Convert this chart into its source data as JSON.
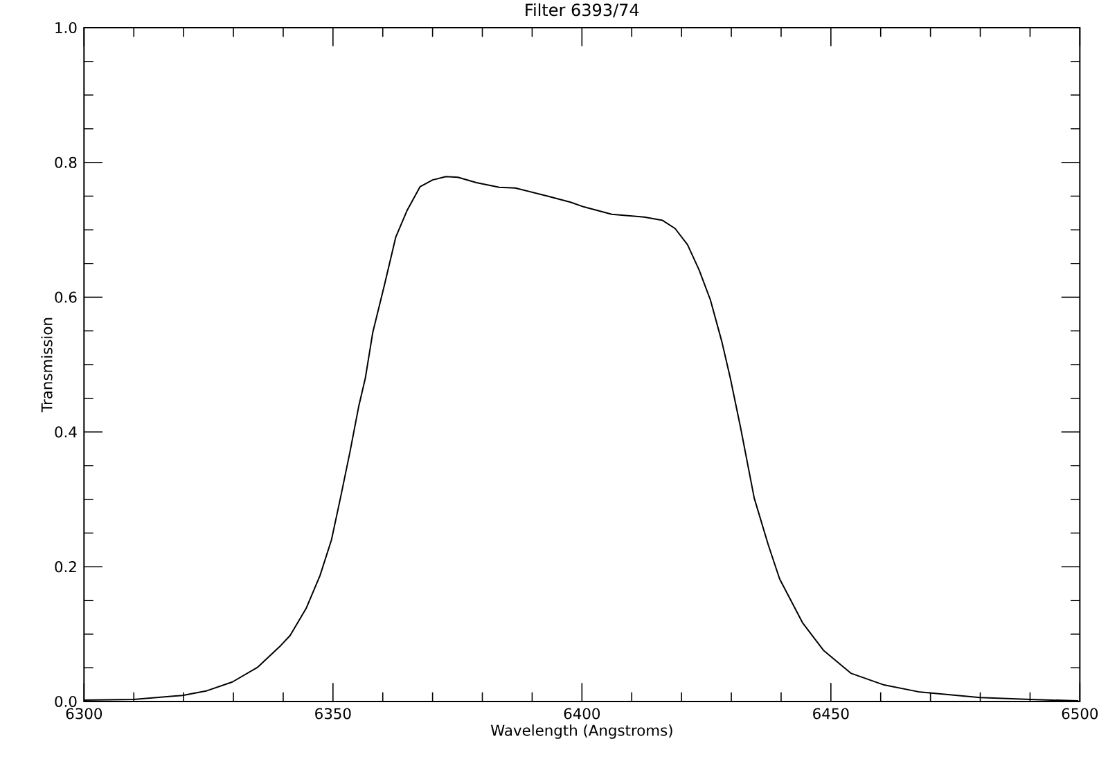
{
  "chart_data": {
    "type": "line",
    "title": "Filter 6393/74",
    "xlabel": "Wavelength (Angstroms)",
    "ylabel": "Transmission",
    "xlim": [
      6300,
      6500
    ],
    "ylim": [
      0,
      1
    ],
    "xticks": [
      6300,
      {
        "value": 6310,
        "label": null
      },
      {
        "value": 6320,
        "label": null
      },
      {
        "value": 6330,
        "label": null
      },
      {
        "value": 6340,
        "label": null
      },
      6350,
      {
        "value": 6360,
        "label": null
      },
      {
        "value": 6370,
        "label": null
      },
      {
        "value": 6380,
        "label": null
      },
      {
        "value": 6390,
        "label": null
      },
      6400,
      {
        "value": 6410,
        "label": null
      },
      {
        "value": 6420,
        "label": null
      },
      {
        "value": 6430,
        "label": null
      },
      {
        "value": 6440,
        "label": null
      },
      6450,
      {
        "value": 6460,
        "label": null
      },
      {
        "value": 6470,
        "label": null
      },
      {
        "value": 6480,
        "label": null
      },
      {
        "value": 6490,
        "label": null
      },
      6500
    ],
    "yticks": [
      {
        "value": 0,
        "label": "0.0"
      },
      {
        "value": 0.05,
        "label": null
      },
      {
        "value": 0.1,
        "label": null
      },
      {
        "value": 0.15,
        "label": null
      },
      {
        "value": 0.2,
        "label": "0.2"
      },
      {
        "value": 0.25,
        "label": null
      },
      {
        "value": 0.3,
        "label": null
      },
      {
        "value": 0.35,
        "label": null
      },
      {
        "value": 0.4,
        "label": "0.4"
      },
      {
        "value": 0.45,
        "label": null
      },
      {
        "value": 0.5,
        "label": null
      },
      {
        "value": 0.55,
        "label": null
      },
      {
        "value": 0.6,
        "label": "0.6"
      },
      {
        "value": 0.65,
        "label": null
      },
      {
        "value": 0.7,
        "label": null
      },
      {
        "value": 0.75,
        "label": null
      },
      {
        "value": 0.8,
        "label": "0.8"
      },
      {
        "value": 0.85,
        "label": null
      },
      {
        "value": 0.9,
        "label": null
      },
      {
        "value": 0.95,
        "label": null
      },
      {
        "value": 1.0,
        "label": "1.0"
      }
    ],
    "series": [
      {
        "color": "#000000",
        "x": [
          6300,
          6310,
          6319.8,
          6324.7,
          6329.8,
          6334.9,
          6339.5,
          6341.4,
          6344.6,
          6347.4,
          6349.7,
          6351.5,
          6353.4,
          6355.2,
          6356.5,
          6358,
          6360.3,
          6362.6,
          6364.9,
          6367.5,
          6370,
          6372.7,
          6375.1,
          6378.8,
          6383.4,
          6386.6,
          6393.1,
          6397.7,
          6400.4,
          6406,
          6412.5,
          6416.2,
          6418.7,
          6421.2,
          6423.5,
          6425.8,
          6428.1,
          6429.8,
          6431.9,
          6434.6,
          6437.4,
          6439.7,
          6444.3,
          6448.5,
          6454,
          6460.5,
          6467.9,
          6479.9,
          6490,
          6499.7
        ],
        "values": [
          0.002,
          0.003,
          0.009,
          0.016,
          0.029,
          0.051,
          0.083,
          0.098,
          0.138,
          0.187,
          0.24,
          0.302,
          0.37,
          0.439,
          0.48,
          0.548,
          0.617,
          0.689,
          0.729,
          0.764,
          0.774,
          0.779,
          0.778,
          0.77,
          0.763,
          0.762,
          0.75,
          0.741,
          0.734,
          0.723,
          0.719,
          0.714,
          0.702,
          0.678,
          0.641,
          0.596,
          0.534,
          0.48,
          0.405,
          0.302,
          0.233,
          0.182,
          0.117,
          0.076,
          0.042,
          0.025,
          0.014,
          0.006,
          0.003,
          0.001
        ]
      }
    ]
  }
}
